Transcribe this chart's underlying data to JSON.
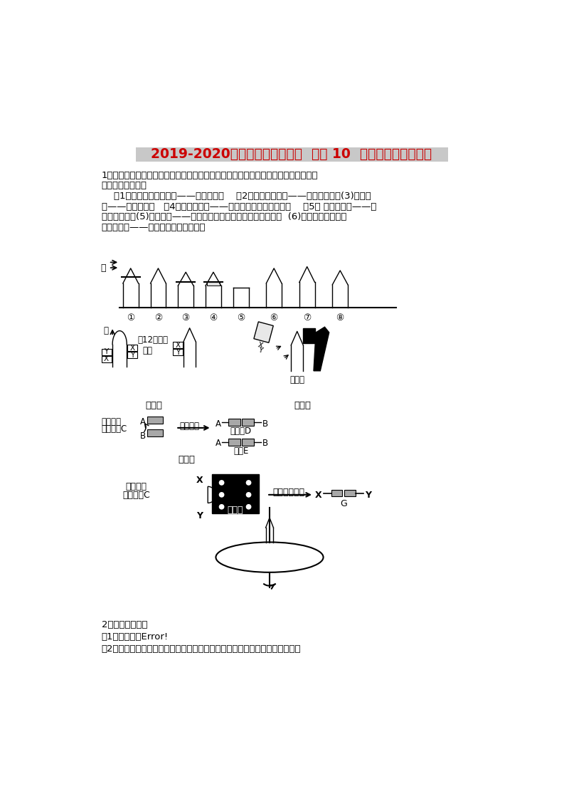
{
  "title": "2019-2020年高考生物一轮复习 专题9 10 植物的激素调节学案",
  "title_display": "2019-2020年高考生物一轮复习  专题9 10  植物的激素调节学案",
  "title_color": "#CC0000",
  "title_bg": "#C8C8C8",
  "bg_color": "#FFFFFF",
  "body_lines": [
    "1．幼苗是研究生长素及其分布与作用原理的最佳实验材料，针对燕麦胚芽鞘系列实验",
    "应明确下列结论：",
    "    （1）生长素的产生部位——胚芽鞘尖端    （2）发挥作用部位——尖端下面一段(3)感光部",
    "位——胚芽鞘尖端   （4）生长素作用——一定浓度范围内促进生长    （5） 弯曲生长部——尖",
    "端下部伸长区(5)弯曲原因——生长素分布不均匀，导致生长不均匀  (6)引起生长素分布不",
    "均匀的原因——单侧光照、地心引力等"
  ],
  "sec2_title": "2．生长素的运输",
  "sec2_p1": "（1）极性运输Error!",
  "sec2_p2": "（2）非极性运输：在成熟组织中，生长素通过韧皮部的筛管进行非极性运输。"
}
